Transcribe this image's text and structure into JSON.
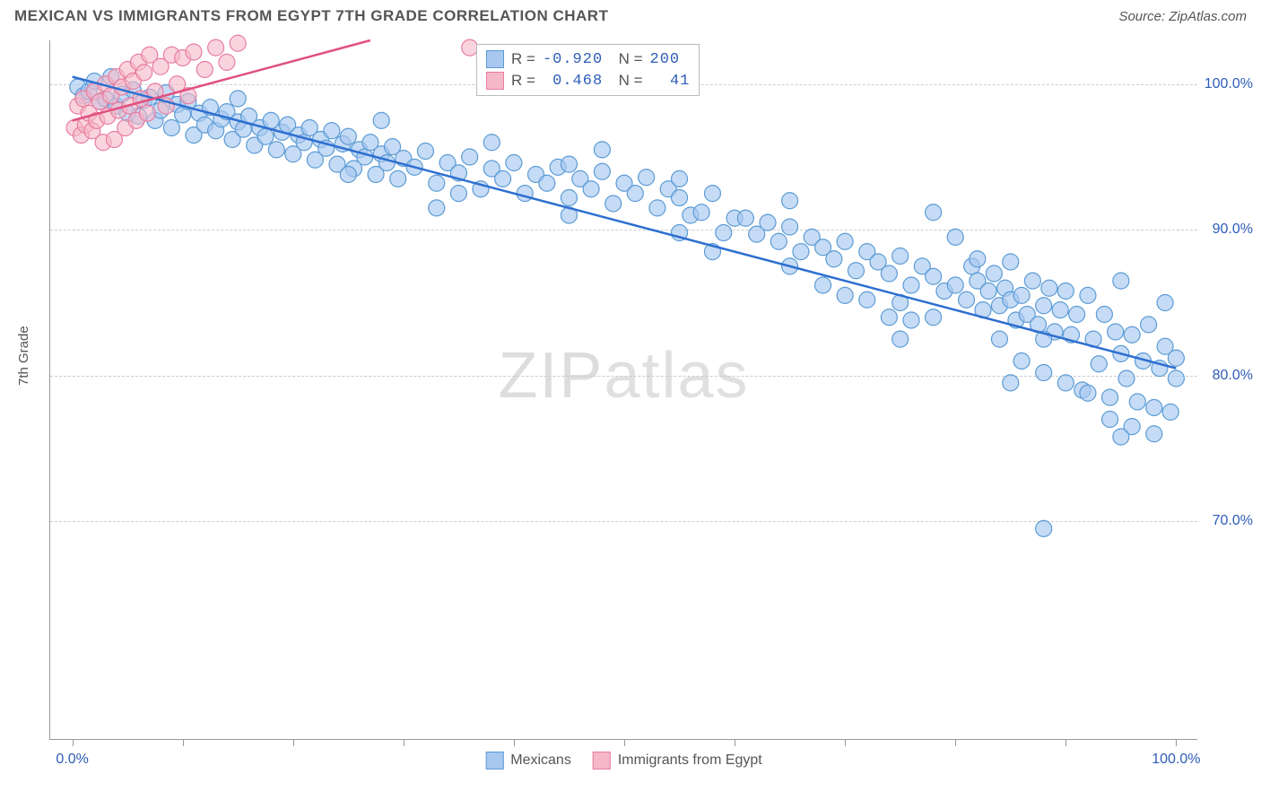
{
  "header": {
    "title": "MEXICAN VS IMMIGRANTS FROM EGYPT 7TH GRADE CORRELATION CHART",
    "source": "Source: ZipAtlas.com"
  },
  "chart": {
    "type": "scatter",
    "ylabel": "7th Grade",
    "watermark_a": "ZIP",
    "watermark_b": "atlas",
    "xlim": [
      -2,
      102
    ],
    "ylim": [
      55,
      103
    ],
    "xticks": [
      0,
      10,
      20,
      30,
      40,
      50,
      60,
      70,
      80,
      90,
      100
    ],
    "xtick_labels": {
      "0": "0.0%",
      "100": "100.0%"
    },
    "yticks": [
      70,
      80,
      90,
      100
    ],
    "ytick_labels": [
      "70.0%",
      "80.0%",
      "90.0%",
      "100.0%"
    ],
    "background": "#ffffff",
    "grid_color": "#cccccc",
    "series": [
      {
        "id": "mexicans",
        "label": "Mexicans",
        "color_fill": "#a8c8f0",
        "color_stroke": "#5a9bd5",
        "line_color": "#2e6fd0",
        "marker_r": 9,
        "marker_opacity": 0.65,
        "R": "-0.920",
        "N": "200",
        "trend": {
          "x1": 0,
          "y1": 100.5,
          "x2": 100,
          "y2": 80.5
        },
        "points": [
          [
            0.5,
            99.8
          ],
          [
            1,
            99.2
          ],
          [
            1.5,
            99.5
          ],
          [
            2,
            100.2
          ],
          [
            2.5,
            98.8
          ],
          [
            3,
            99.0
          ],
          [
            3.5,
            100.5
          ],
          [
            4,
            98.5
          ],
          [
            4.5,
            99.3
          ],
          [
            5,
            98.0
          ],
          [
            5.5,
            99.6
          ],
          [
            6,
            97.8
          ],
          [
            6.5,
            98.9
          ],
          [
            7,
            99.1
          ],
          [
            7.5,
            97.5
          ],
          [
            8,
            98.2
          ],
          [
            8.5,
            99.4
          ],
          [
            9,
            97.0
          ],
          [
            9.5,
            98.6
          ],
          [
            10,
            97.9
          ],
          [
            10.5,
            98.8
          ],
          [
            11,
            96.5
          ],
          [
            11.5,
            98.0
          ],
          [
            12,
            97.2
          ],
          [
            12.5,
            98.4
          ],
          [
            13,
            96.8
          ],
          [
            13.5,
            97.6
          ],
          [
            14,
            98.1
          ],
          [
            14.5,
            96.2
          ],
          [
            15,
            97.4
          ],
          [
            15.5,
            96.9
          ],
          [
            16,
            97.8
          ],
          [
            16.5,
            95.8
          ],
          [
            17,
            97.0
          ],
          [
            17.5,
            96.4
          ],
          [
            18,
            97.5
          ],
          [
            18.5,
            95.5
          ],
          [
            19,
            96.7
          ],
          [
            19.5,
            97.2
          ],
          [
            20,
            95.2
          ],
          [
            20.5,
            96.5
          ],
          [
            21,
            96.0
          ],
          [
            21.5,
            97.0
          ],
          [
            22,
            94.8
          ],
          [
            22.5,
            96.2
          ],
          [
            23,
            95.6
          ],
          [
            23.5,
            96.8
          ],
          [
            24,
            94.5
          ],
          [
            24.5,
            95.9
          ],
          [
            25,
            96.4
          ],
          [
            25.5,
            94.2
          ],
          [
            26,
            95.5
          ],
          [
            26.5,
            95.0
          ],
          [
            27,
            96.0
          ],
          [
            27.5,
            93.8
          ],
          [
            28,
            95.2
          ],
          [
            28.5,
            94.6
          ],
          [
            29,
            95.7
          ],
          [
            29.5,
            93.5
          ],
          [
            30,
            94.9
          ],
          [
            31,
            94.3
          ],
          [
            32,
            95.4
          ],
          [
            33,
            93.2
          ],
          [
            34,
            94.6
          ],
          [
            35,
            93.9
          ],
          [
            36,
            95.0
          ],
          [
            37,
            92.8
          ],
          [
            38,
            94.2
          ],
          [
            39,
            93.5
          ],
          [
            40,
            94.6
          ],
          [
            41,
            92.5
          ],
          [
            42,
            93.8
          ],
          [
            43,
            93.2
          ],
          [
            44,
            94.3
          ],
          [
            45,
            92.2
          ],
          [
            46,
            93.5
          ],
          [
            47,
            92.8
          ],
          [
            48,
            94.0
          ],
          [
            49,
            91.8
          ],
          [
            50,
            93.2
          ],
          [
            51,
            92.5
          ],
          [
            52,
            93.6
          ],
          [
            53,
            91.5
          ],
          [
            54,
            92.8
          ],
          [
            55,
            92.2
          ],
          [
            56,
            91.0
          ],
          [
            57,
            91.2
          ],
          [
            58,
            92.5
          ],
          [
            59,
            89.8
          ],
          [
            60,
            90.8
          ],
          [
            61,
            90.8
          ],
          [
            62,
            89.7
          ],
          [
            63,
            90.5
          ],
          [
            64,
            89.2
          ],
          [
            65,
            90.2
          ],
          [
            66,
            88.5
          ],
          [
            67,
            89.5
          ],
          [
            68,
            88.8
          ],
          [
            69,
            88.0
          ],
          [
            70,
            89.2
          ],
          [
            71,
            87.2
          ],
          [
            72,
            88.5
          ],
          [
            73,
            87.8
          ],
          [
            74,
            87.0
          ],
          [
            75,
            88.2
          ],
          [
            76,
            86.2
          ],
          [
            77,
            87.5
          ],
          [
            78,
            86.8
          ],
          [
            79,
            85.8
          ],
          [
            80,
            86.2
          ],
          [
            81,
            85.2
          ],
          [
            81.5,
            87.5
          ],
          [
            82,
            86.5
          ],
          [
            82.5,
            84.5
          ],
          [
            83,
            85.8
          ],
          [
            83.5,
            87.0
          ],
          [
            84,
            84.8
          ],
          [
            84.5,
            86.0
          ],
          [
            85,
            85.2
          ],
          [
            85.5,
            83.8
          ],
          [
            86,
            85.5
          ],
          [
            86.5,
            84.2
          ],
          [
            87,
            86.5
          ],
          [
            87.5,
            83.5
          ],
          [
            88,
            84.8
          ],
          [
            88.5,
            86.0
          ],
          [
            89,
            83.0
          ],
          [
            89.5,
            84.5
          ],
          [
            90,
            85.8
          ],
          [
            90.5,
            82.8
          ],
          [
            91,
            84.2
          ],
          [
            91.5,
            79.0
          ],
          [
            92,
            85.5
          ],
          [
            92.5,
            82.5
          ],
          [
            93,
            80.8
          ],
          [
            93.5,
            84.2
          ],
          [
            94,
            78.5
          ],
          [
            94.5,
            83.0
          ],
          [
            95,
            81.5
          ],
          [
            95.5,
            79.8
          ],
          [
            96,
            82.8
          ],
          [
            96.5,
            78.2
          ],
          [
            97,
            81.0
          ],
          [
            97.5,
            83.5
          ],
          [
            98,
            77.8
          ],
          [
            98.5,
            80.5
          ],
          [
            99,
            82.0
          ],
          [
            99.5,
            77.5
          ],
          [
            100,
            79.8
          ],
          [
            100,
            81.2
          ],
          [
            70,
            85.5
          ],
          [
            72,
            85.2
          ],
          [
            74,
            84.0
          ],
          [
            76,
            83.8
          ],
          [
            78,
            91.2
          ],
          [
            80,
            89.5
          ],
          [
            82,
            88.0
          ],
          [
            84,
            82.5
          ],
          [
            86,
            81.0
          ],
          [
            88,
            80.2
          ],
          [
            90,
            79.5
          ],
          [
            92,
            78.8
          ],
          [
            94,
            77.0
          ],
          [
            96,
            76.5
          ],
          [
            98,
            76.0
          ],
          [
            88,
            69.5
          ],
          [
            33,
            91.5
          ],
          [
            45,
            94.5
          ],
          [
            55,
            89.8
          ],
          [
            65,
            87.5
          ],
          [
            75,
            85.0
          ],
          [
            85,
            79.5
          ],
          [
            95,
            75.8
          ],
          [
            28,
            97.5
          ],
          [
            38,
            96.0
          ],
          [
            48,
            95.5
          ],
          [
            58,
            88.5
          ],
          [
            68,
            86.2
          ],
          [
            78,
            84.0
          ],
          [
            88,
            82.5
          ],
          [
            15,
            99.0
          ],
          [
            25,
            93.8
          ],
          [
            35,
            92.5
          ],
          [
            45,
            91.0
          ],
          [
            55,
            93.5
          ],
          [
            65,
            92.0
          ],
          [
            75,
            82.5
          ],
          [
            85,
            87.8
          ],
          [
            95,
            86.5
          ],
          [
            99,
            85.0
          ]
        ]
      },
      {
        "id": "egypt",
        "label": "Immigrants from Egypt",
        "color_fill": "#f5b8c8",
        "color_stroke": "#e87ca0",
        "line_color": "#e05080",
        "marker_r": 9,
        "marker_opacity": 0.6,
        "R": "0.468",
        "N": "41",
        "trend": {
          "x1": 0,
          "y1": 97.5,
          "x2": 27,
          "y2": 103
        },
        "points": [
          [
            0.2,
            97.0
          ],
          [
            0.5,
            98.5
          ],
          [
            0.8,
            96.5
          ],
          [
            1.0,
            99.0
          ],
          [
            1.2,
            97.2
          ],
          [
            1.5,
            98.0
          ],
          [
            1.8,
            96.8
          ],
          [
            2.0,
            99.5
          ],
          [
            2.2,
            97.5
          ],
          [
            2.5,
            98.8
          ],
          [
            2.8,
            96.0
          ],
          [
            3.0,
            100.0
          ],
          [
            3.2,
            97.8
          ],
          [
            3.5,
            99.2
          ],
          [
            3.8,
            96.2
          ],
          [
            4.0,
            100.5
          ],
          [
            4.2,
            98.2
          ],
          [
            4.5,
            99.8
          ],
          [
            4.8,
            97.0
          ],
          [
            5.0,
            101.0
          ],
          [
            5.2,
            98.5
          ],
          [
            5.5,
            100.2
          ],
          [
            5.8,
            97.5
          ],
          [
            6.0,
            101.5
          ],
          [
            6.2,
            99.0
          ],
          [
            6.5,
            100.8
          ],
          [
            6.8,
            98.0
          ],
          [
            7.0,
            102.0
          ],
          [
            7.5,
            99.5
          ],
          [
            8.0,
            101.2
          ],
          [
            8.5,
            98.5
          ],
          [
            9.0,
            102.0
          ],
          [
            9.5,
            100.0
          ],
          [
            10.0,
            101.8
          ],
          [
            10.5,
            99.2
          ],
          [
            11.0,
            102.2
          ],
          [
            12.0,
            101.0
          ],
          [
            13.0,
            102.5
          ],
          [
            14.0,
            101.5
          ],
          [
            15.0,
            102.8
          ],
          [
            36.0,
            102.5
          ]
        ]
      }
    ],
    "bottom_legend": [
      {
        "label": "Mexicans",
        "fill": "#a8c8f0",
        "stroke": "#5a9bd5"
      },
      {
        "label": "Immigrants from Egypt",
        "fill": "#f5b8c8",
        "stroke": "#e87ca0"
      }
    ]
  }
}
